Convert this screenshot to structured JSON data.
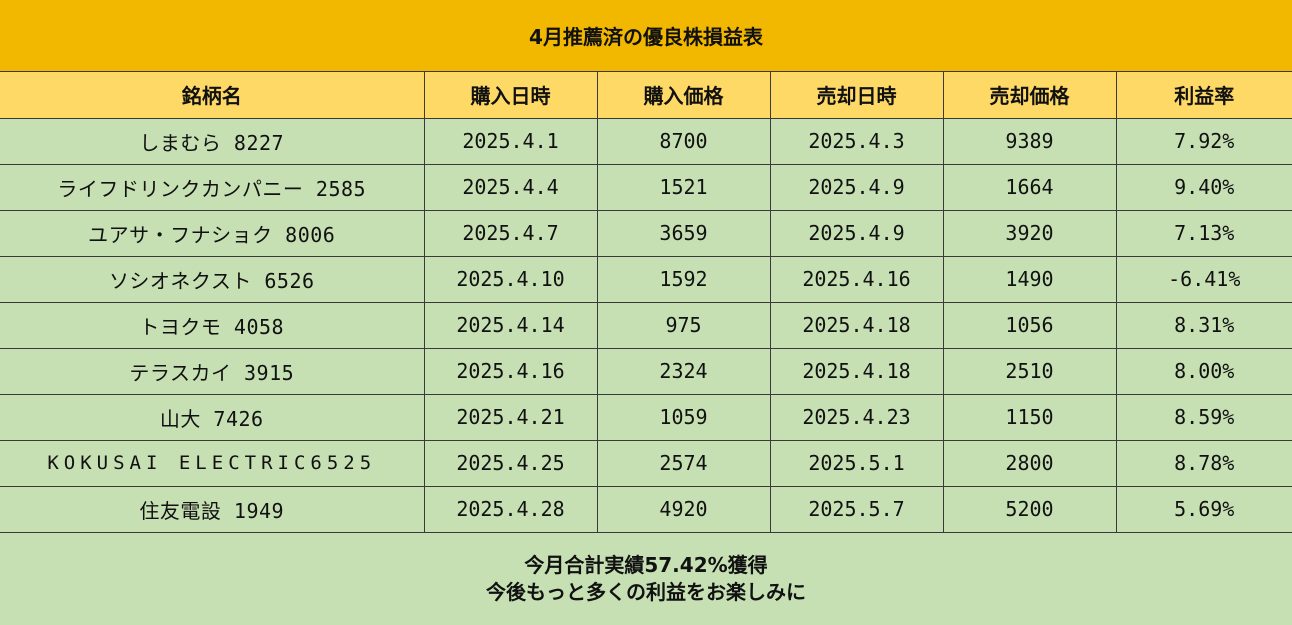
{
  "title": "4月推薦済の優良株損益表",
  "headers": [
    "銘柄名",
    "購入日時",
    "購入価格",
    "売却日時",
    "売却価格",
    "利益率"
  ],
  "rows": [
    {
      "name": "しまむら 8227",
      "buy_date": "2025.4.1",
      "buy_price": "8700",
      "sell_date": "2025.4.3",
      "sell_price": "9389",
      "profit": "7.92%"
    },
    {
      "name": "ライフドリンクカンパニー 2585",
      "buy_date": "2025.4.4",
      "buy_price": "1521",
      "sell_date": "2025.4.9",
      "sell_price": "1664",
      "profit": "9.40%"
    },
    {
      "name": "ユアサ・フナショク 8006",
      "buy_date": "2025.4.7",
      "buy_price": "3659",
      "sell_date": "2025.4.9",
      "sell_price": "3920",
      "profit": "7.13%"
    },
    {
      "name": "ソシオネクスト 6526",
      "buy_date": "2025.4.10",
      "buy_price": "1592",
      "sell_date": "2025.4.16",
      "sell_price": "1490",
      "profit": "-6.41%"
    },
    {
      "name": "トヨクモ 4058",
      "buy_date": "2025.4.14",
      "buy_price": "975",
      "sell_date": "2025.4.18",
      "sell_price": "1056",
      "profit": "8.31%"
    },
    {
      "name": "テラスカイ 3915",
      "buy_date": "2025.4.16",
      "buy_price": "2324",
      "sell_date": "2025.4.18",
      "sell_price": "2510",
      "profit": "8.00%"
    },
    {
      "name": "山大 7426",
      "buy_date": "2025.4.21",
      "buy_price": "1059",
      "sell_date": "2025.4.23",
      "sell_price": "1150",
      "profit": "8.59%"
    },
    {
      "name": "KOKUSAI ELECTRIC6525",
      "buy_date": "2025.4.25",
      "buy_price": "2574",
      "sell_date": "2025.5.1",
      "sell_price": "2800",
      "profit": "8.78%"
    },
    {
      "name": "住友電設 1949",
      "buy_date": "2025.4.28",
      "buy_price": "4920",
      "sell_date": "2025.5.7",
      "sell_price": "5200",
      "profit": "5.69%"
    }
  ],
  "footer": {
    "line1": "今月合計実績57.42%獲得",
    "line2": "今後もっと多くの利益をお楽しみに"
  },
  "colors": {
    "title_bg": "#f2b800",
    "header_bg": "#ffd966",
    "body_bg": "#c6e0b4"
  }
}
